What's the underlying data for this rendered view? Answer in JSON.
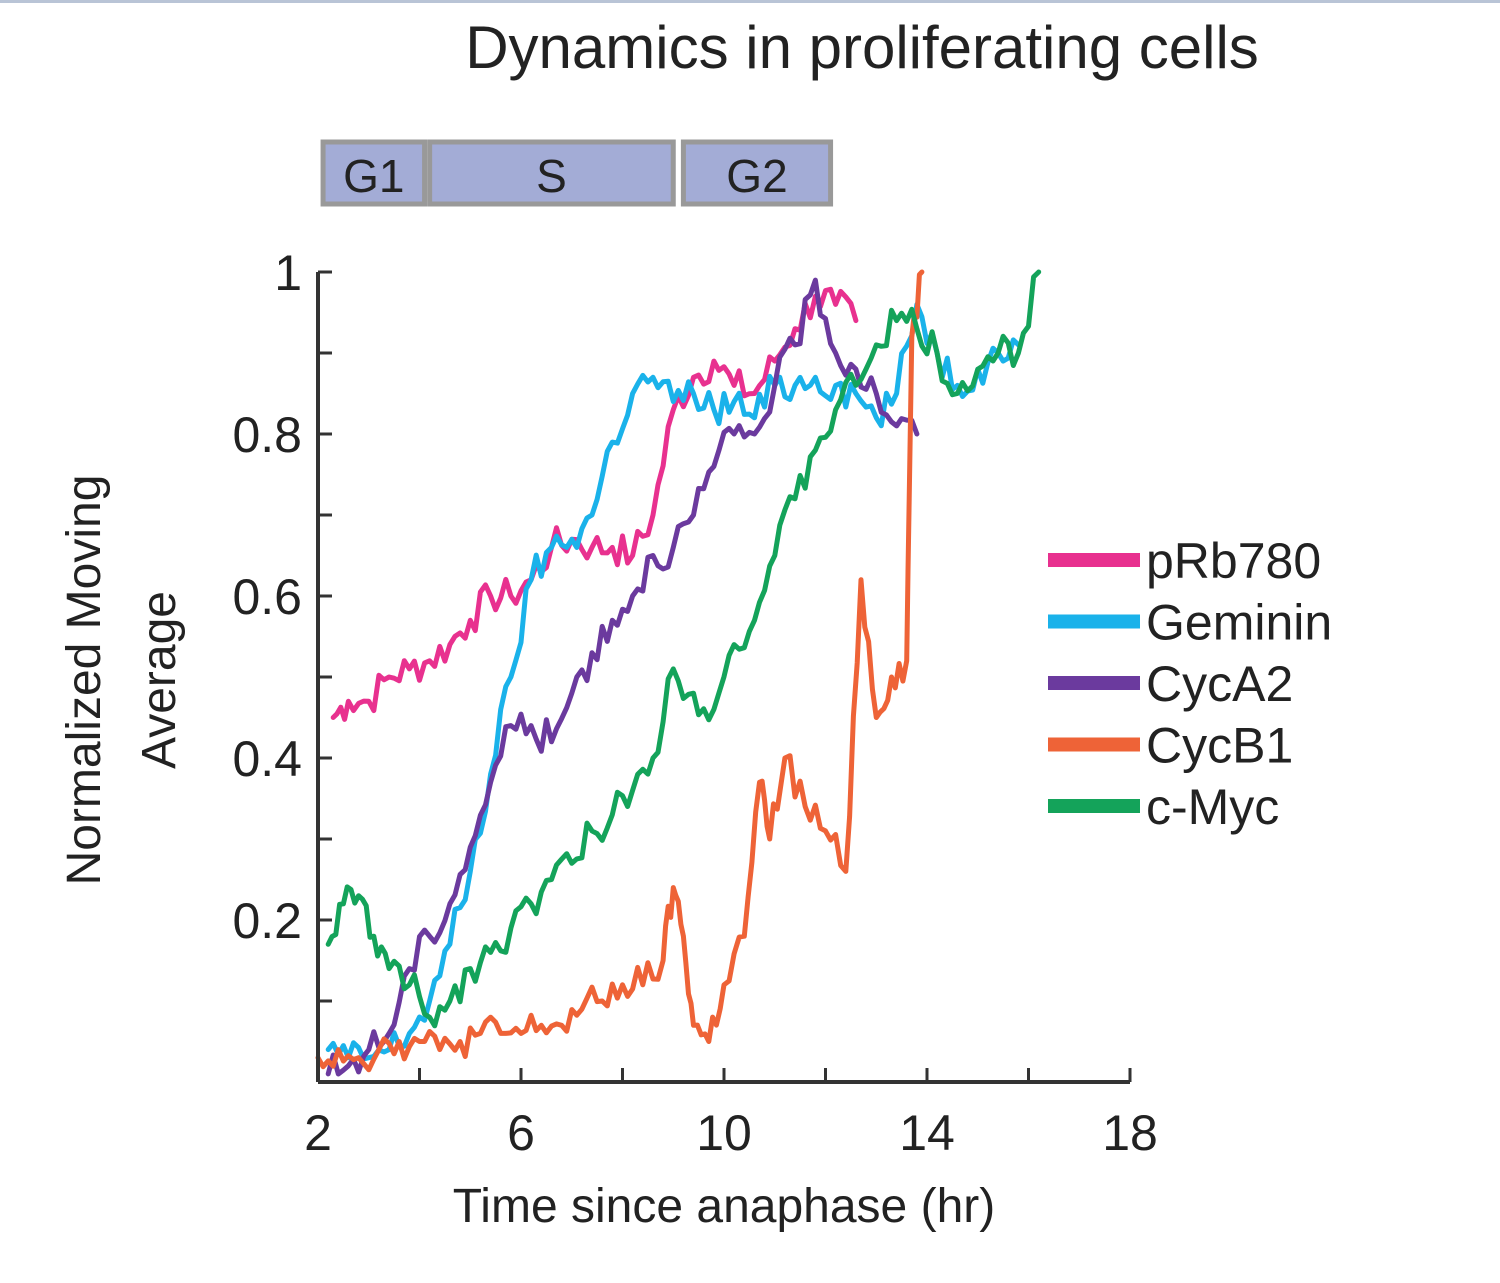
{
  "chart_data": {
    "type": "line",
    "title": "Dynamics in proliferating cells",
    "xlabel": "Time since anaphase (hr)",
    "ylabel_line1": "Normalized Moving",
    "ylabel_line2": "Average",
    "xlim": [
      2,
      18
    ],
    "ylim": [
      0,
      1
    ],
    "xticks": [
      2,
      4,
      6,
      8,
      10,
      12,
      14,
      16,
      18
    ],
    "xtick_labels": [
      "2",
      "6",
      "10",
      "14",
      "18"
    ],
    "xtick_label_values": [
      2,
      6,
      10,
      14,
      18
    ],
    "yticks": [
      0.1,
      0.2,
      0.3,
      0.4,
      0.5,
      0.6,
      0.7,
      0.8,
      0.9,
      1.0
    ],
    "ytick_labels": [
      "0.2",
      "0.4",
      "0.6",
      "0.8",
      "1"
    ],
    "ytick_label_values": [
      0.2,
      0.4,
      0.6,
      0.8,
      1.0
    ],
    "grid": false,
    "legend_position": "right",
    "phases": [
      {
        "label": "G1",
        "start": 2.1,
        "end": 4.1
      },
      {
        "label": "S",
        "start": 4.2,
        "end": 9.0
      },
      {
        "label": "G2",
        "start": 9.2,
        "end": 12.1
      }
    ],
    "phase_fill": "#a3acd6",
    "phase_border": "#999999",
    "series": [
      {
        "name": "pRb780",
        "color": "#e8318f",
        "x": [
          2.3,
          2.6,
          3.0,
          3.4,
          3.8,
          4.2,
          4.6,
          5.0,
          5.4,
          5.8,
          6.2,
          6.6,
          7.0,
          7.4,
          7.8,
          8.2,
          8.6,
          9.0,
          9.4,
          9.8,
          10.2,
          10.6,
          11.0,
          11.4,
          11.8,
          12.2,
          12.6
        ],
        "y": [
          0.45,
          0.47,
          0.47,
          0.5,
          0.51,
          0.52,
          0.54,
          0.57,
          0.6,
          0.6,
          0.62,
          0.66,
          0.67,
          0.66,
          0.66,
          0.65,
          0.7,
          0.83,
          0.87,
          0.89,
          0.86,
          0.85,
          0.89,
          0.93,
          0.97,
          0.96,
          0.94
        ]
      },
      {
        "name": "Geminin",
        "color": "#1ab2ea",
        "x": [
          2.2,
          2.6,
          3.0,
          3.4,
          3.8,
          4.2,
          4.6,
          5.0,
          5.4,
          5.8,
          6.2,
          6.6,
          7.0,
          7.4,
          7.8,
          8.2,
          8.6,
          9.0,
          9.4,
          9.8,
          10.2,
          10.6,
          11.0,
          11.4,
          11.8,
          12.2,
          12.6,
          13.0,
          13.4,
          13.8,
          14.2,
          14.6,
          15.0,
          15.4,
          15.8
        ],
        "y": [
          0.04,
          0.03,
          0.03,
          0.04,
          0.06,
          0.1,
          0.17,
          0.26,
          0.38,
          0.5,
          0.62,
          0.66,
          0.67,
          0.7,
          0.79,
          0.85,
          0.87,
          0.84,
          0.85,
          0.83,
          0.84,
          0.82,
          0.86,
          0.86,
          0.87,
          0.86,
          0.85,
          0.82,
          0.85,
          0.96,
          0.9,
          0.86,
          0.88,
          0.9,
          0.91
        ]
      },
      {
        "name": "CycA2",
        "color": "#6b3a9e",
        "x": [
          2.2,
          2.6,
          3.0,
          3.4,
          3.8,
          4.2,
          4.6,
          5.0,
          5.4,
          5.8,
          6.2,
          6.6,
          7.0,
          7.4,
          7.8,
          8.2,
          8.6,
          9.0,
          9.4,
          9.8,
          10.2,
          10.6,
          11.0,
          11.4,
          11.8,
          12.2,
          12.6,
          13.0,
          13.4,
          13.8
        ],
        "y": [
          0.01,
          0.02,
          0.04,
          0.06,
          0.14,
          0.18,
          0.22,
          0.29,
          0.37,
          0.44,
          0.44,
          0.42,
          0.48,
          0.53,
          0.57,
          0.6,
          0.65,
          0.66,
          0.7,
          0.76,
          0.8,
          0.8,
          0.86,
          0.91,
          0.99,
          0.9,
          0.88,
          0.85,
          0.81,
          0.8
        ]
      },
      {
        "name": "CycB1",
        "color": "#ee6337",
        "x": [
          2.0,
          2.4,
          2.8,
          3.2,
          3.6,
          4.0,
          4.4,
          4.8,
          5.2,
          5.6,
          6.0,
          6.4,
          6.8,
          7.2,
          7.6,
          8.0,
          8.4,
          8.8,
          9.0,
          9.2,
          9.4,
          9.7,
          10.0,
          10.4,
          10.7,
          10.9,
          11.2,
          11.6,
          12.0,
          12.4,
          12.7,
          13.0,
          13.3,
          13.6,
          13.7,
          13.9
        ],
        "y": [
          0.03,
          0.04,
          0.03,
          0.04,
          0.05,
          0.05,
          0.04,
          0.05,
          0.06,
          0.06,
          0.06,
          0.07,
          0.07,
          0.09,
          0.1,
          0.12,
          0.12,
          0.15,
          0.24,
          0.18,
          0.07,
          0.05,
          0.12,
          0.18,
          0.37,
          0.3,
          0.4,
          0.34,
          0.31,
          0.26,
          0.62,
          0.45,
          0.5,
          0.52,
          0.92,
          1.0
        ]
      },
      {
        "name": "c-Myc",
        "color": "#14a35a",
        "x": [
          2.2,
          2.5,
          2.8,
          3.1,
          3.4,
          3.8,
          4.2,
          4.6,
          5.0,
          5.4,
          5.8,
          6.2,
          6.6,
          7.0,
          7.4,
          7.8,
          8.2,
          8.6,
          9.0,
          9.4,
          9.8,
          10.2,
          10.6,
          11.0,
          11.4,
          11.8,
          12.2,
          12.6,
          13.0,
          13.4,
          13.8,
          14.2,
          14.6,
          15.0,
          15.4,
          15.8,
          16.2
        ],
        "y": [
          0.17,
          0.22,
          0.23,
          0.18,
          0.14,
          0.12,
          0.08,
          0.1,
          0.14,
          0.16,
          0.19,
          0.22,
          0.25,
          0.27,
          0.31,
          0.33,
          0.36,
          0.4,
          0.51,
          0.48,
          0.46,
          0.54,
          0.57,
          0.65,
          0.72,
          0.78,
          0.83,
          0.86,
          0.91,
          0.94,
          0.93,
          0.9,
          0.85,
          0.88,
          0.9,
          0.9,
          1.0
        ]
      }
    ]
  }
}
